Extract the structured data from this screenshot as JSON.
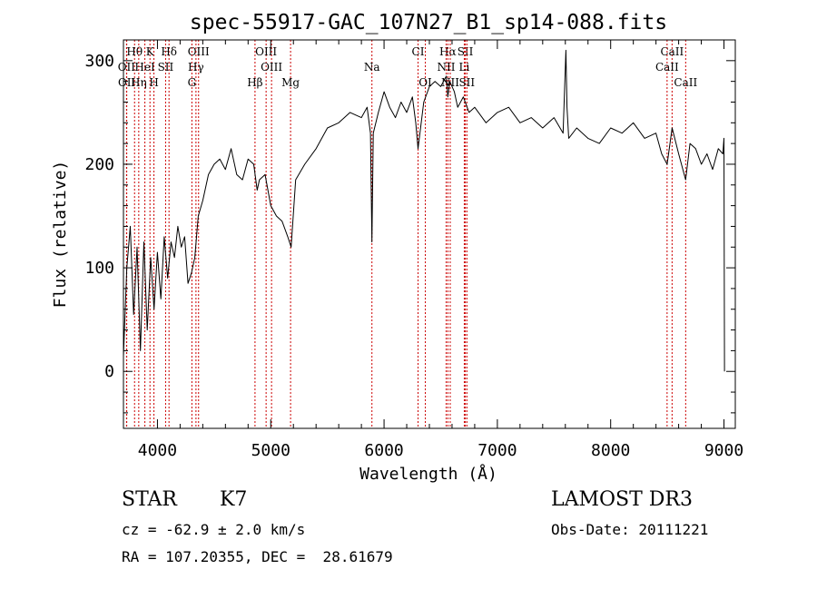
{
  "chart_data": {
    "type": "line",
    "title": "spec-55917-GAC_107N27_B1_sp14-088.fits",
    "xlabel": "Wavelength (Å)",
    "ylabel": "Flux (relative)",
    "xlim": [
      3700,
      9100
    ],
    "ylim": [
      -55,
      320
    ],
    "xticks": [
      4000,
      5000,
      6000,
      7000,
      8000,
      9000
    ],
    "yticks": [
      0,
      100,
      200,
      300
    ],
    "series": [
      {
        "name": "flux",
        "x": [
          3700,
          3730,
          3760,
          3790,
          3820,
          3850,
          3880,
          3910,
          3940,
          3970,
          4000,
          4030,
          4060,
          4090,
          4120,
          4150,
          4180,
          4210,
          4240,
          4270,
          4300,
          4330,
          4360,
          4400,
          4450,
          4500,
          4550,
          4600,
          4650,
          4700,
          4750,
          4800,
          4850,
          4880,
          4900,
          4950,
          5000,
          5050,
          5100,
          5150,
          5180,
          5220,
          5300,
          5400,
          5500,
          5600,
          5700,
          5800,
          5850,
          5880,
          5893,
          5905,
          5950,
          6000,
          6050,
          6100,
          6150,
          6200,
          6250,
          6280,
          6300,
          6350,
          6400,
          6450,
          6500,
          6550,
          6563,
          6580,
          6620,
          6650,
          6700,
          6750,
          6800,
          6900,
          7000,
          7100,
          7200,
          7300,
          7400,
          7500,
          7580,
          7605,
          7615,
          7630,
          7700,
          7800,
          7900,
          8000,
          8100,
          8200,
          8300,
          8400,
          8450,
          8498,
          8542,
          8600,
          8662,
          8700,
          8750,
          8800,
          8850,
          8900,
          8950,
          8990,
          9000,
          9005
        ],
        "y": [
          15,
          100,
          140,
          55,
          120,
          20,
          125,
          40,
          110,
          60,
          115,
          70,
          130,
          90,
          125,
          110,
          140,
          120,
          130,
          85,
          95,
          110,
          150,
          165,
          190,
          200,
          205,
          195,
          215,
          190,
          185,
          205,
          200,
          175,
          185,
          190,
          160,
          150,
          145,
          130,
          120,
          185,
          200,
          215,
          235,
          240,
          250,
          245,
          255,
          230,
          125,
          230,
          250,
          270,
          255,
          245,
          260,
          250,
          265,
          240,
          215,
          260,
          275,
          280,
          275,
          285,
          265,
          280,
          270,
          255,
          265,
          250,
          255,
          240,
          250,
          255,
          240,
          245,
          235,
          245,
          230,
          310,
          255,
          225,
          235,
          225,
          220,
          235,
          230,
          240,
          225,
          230,
          210,
          200,
          235,
          210,
          185,
          220,
          215,
          200,
          210,
          195,
          215,
          210,
          225,
          0
        ]
      }
    ],
    "lines": [
      {
        "label": "Hθ",
        "x": 3798,
        "row": 1
      },
      {
        "label": "K",
        "x": 3934,
        "row": 1
      },
      {
        "label": "Hδ",
        "x": 4102,
        "row": 1
      },
      {
        "label": "OIII",
        "x": 4363,
        "row": 1
      },
      {
        "label": "OIII",
        "x": 4959,
        "row": 1
      },
      {
        "label": "CI",
        "x": 6300,
        "row": 1
      },
      {
        "label": "Hα",
        "x": 6563,
        "row": 1
      },
      {
        "label": "SII",
        "x": 6717,
        "row": 1
      },
      {
        "label": "CaII",
        "x": 8542,
        "row": 1
      },
      {
        "label": "OII",
        "x": 3727,
        "row": 2
      },
      {
        "label": "HeI",
        "x": 3889,
        "row": 2
      },
      {
        "label": "SII",
        "x": 4072,
        "row": 2
      },
      {
        "label": "Hγ",
        "x": 4340,
        "row": 2
      },
      {
        "label": "OIII",
        "x": 5007,
        "row": 2
      },
      {
        "label": "Na",
        "x": 5893,
        "row": 2
      },
      {
        "label": "NII",
        "x": 6548,
        "row": 2
      },
      {
        "label": "Li",
        "x": 6708,
        "row": 2
      },
      {
        "label": "CaII",
        "x": 8498,
        "row": 2
      },
      {
        "label": "OII",
        "x": 3729,
        "row": 3
      },
      {
        "label": "Hη",
        "x": 3835,
        "row": 3
      },
      {
        "label": "H",
        "x": 3969,
        "row": 3
      },
      {
        "label": "G",
        "x": 4304,
        "row": 3
      },
      {
        "label": "Hβ",
        "x": 4861,
        "row": 3
      },
      {
        "label": "Mg",
        "x": 5175,
        "row": 3
      },
      {
        "label": "OI",
        "x": 6364,
        "row": 3
      },
      {
        "label": "NII",
        "x": 6584,
        "row": 3
      },
      {
        "label": "SII",
        "x": 6731,
        "row": 3
      },
      {
        "label": "CaII",
        "x": 8662,
        "row": 3
      }
    ]
  },
  "info": {
    "object_class": "STAR",
    "subclass": "K7",
    "cz": "cz = -62.9 ± 2.0 km/s",
    "coords": "RA = 107.20355, DEC =  28.61679",
    "survey": "LAMOST DR3",
    "obs_date": "Obs-Date: 20111221"
  }
}
